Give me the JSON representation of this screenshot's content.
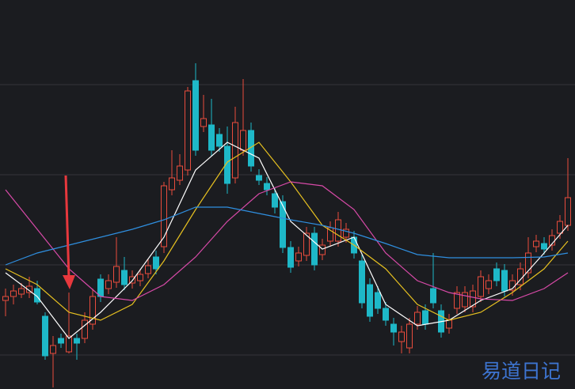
{
  "chart_data": {
    "type": "candlestick",
    "ylim": [
      0,
      492
    ],
    "yticks": [
      43,
      157,
      271,
      385
    ],
    "grid": true,
    "up_color": "#e84c3d",
    "down_color": "#1eb8c8",
    "watermark": "易道日记",
    "candles": [
      {
        "open": 112,
        "high": 127,
        "low": 92,
        "close": 117
      },
      {
        "open": 117,
        "high": 132,
        "low": 107,
        "close": 124
      },
      {
        "open": 120,
        "high": 134,
        "low": 115,
        "close": 127
      },
      {
        "open": 122,
        "high": 142,
        "low": 115,
        "close": 130
      },
      {
        "open": 127,
        "high": 137,
        "low": 107,
        "close": 110
      },
      {
        "open": 92,
        "high": 97,
        "low": 37,
        "close": 42
      },
      {
        "open": 45,
        "high": 67,
        "low": 2,
        "close": 55
      },
      {
        "open": 64,
        "high": 70,
        "low": 52,
        "close": 58
      },
      {
        "open": 47,
        "high": 122,
        "low": 45,
        "close": 67
      },
      {
        "open": 64,
        "high": 70,
        "low": 37,
        "close": 58
      },
      {
        "open": 64,
        "high": 97,
        "low": 58,
        "close": 87
      },
      {
        "open": 82,
        "high": 127,
        "low": 75,
        "close": 117
      },
      {
        "open": 139,
        "high": 145,
        "low": 110,
        "close": 117
      },
      {
        "open": 127,
        "high": 145,
        "low": 120,
        "close": 137
      },
      {
        "open": 135,
        "high": 192,
        "low": 128,
        "close": 155
      },
      {
        "open": 150,
        "high": 167,
        "low": 125,
        "close": 132
      },
      {
        "open": 134,
        "high": 150,
        "low": 127,
        "close": 142
      },
      {
        "open": 137,
        "high": 152,
        "low": 130,
        "close": 145
      },
      {
        "open": 146,
        "high": 165,
        "low": 140,
        "close": 156
      },
      {
        "open": 167,
        "high": 175,
        "low": 145,
        "close": 152
      },
      {
        "open": 180,
        "high": 262,
        "low": 172,
        "close": 257
      },
      {
        "open": 252,
        "high": 302,
        "low": 245,
        "close": 267
      },
      {
        "open": 264,
        "high": 297,
        "low": 258,
        "close": 282
      },
      {
        "open": 277,
        "high": 382,
        "low": 270,
        "close": 377
      },
      {
        "open": 390,
        "high": 412,
        "low": 295,
        "close": 302
      },
      {
        "open": 332,
        "high": 372,
        "low": 325,
        "close": 342
      },
      {
        "open": 334,
        "high": 367,
        "low": 295,
        "close": 302
      },
      {
        "open": 322,
        "high": 330,
        "low": 300,
        "close": 307
      },
      {
        "open": 307,
        "high": 332,
        "low": 247,
        "close": 260
      },
      {
        "open": 267,
        "high": 357,
        "low": 260,
        "close": 337
      },
      {
        "open": 302,
        "high": 392,
        "low": 295,
        "close": 327
      },
      {
        "open": 327,
        "high": 337,
        "low": 275,
        "close": 282
      },
      {
        "open": 270,
        "high": 278,
        "low": 258,
        "close": 264
      },
      {
        "open": 260,
        "high": 268,
        "low": 245,
        "close": 252
      },
      {
        "open": 247,
        "high": 255,
        "low": 222,
        "close": 230
      },
      {
        "open": 237,
        "high": 245,
        "low": 172,
        "close": 179
      },
      {
        "open": 179,
        "high": 187,
        "low": 147,
        "close": 154
      },
      {
        "open": 162,
        "high": 180,
        "low": 155,
        "close": 172
      },
      {
        "open": 169,
        "high": 205,
        "low": 162,
        "close": 197
      },
      {
        "open": 197,
        "high": 205,
        "low": 150,
        "close": 157
      },
      {
        "open": 170,
        "high": 190,
        "low": 163,
        "close": 182
      },
      {
        "open": 187,
        "high": 212,
        "low": 180,
        "close": 204
      },
      {
        "open": 187,
        "high": 224,
        "low": 180,
        "close": 214
      },
      {
        "open": 192,
        "high": 210,
        "low": 185,
        "close": 202
      },
      {
        "open": 192,
        "high": 200,
        "low": 165,
        "close": 172
      },
      {
        "open": 162,
        "high": 170,
        "low": 102,
        "close": 109
      },
      {
        "open": 132,
        "high": 140,
        "low": 85,
        "close": 92
      },
      {
        "open": 122,
        "high": 130,
        "low": 95,
        "close": 102
      },
      {
        "open": 102,
        "high": 110,
        "low": 80,
        "close": 87
      },
      {
        "open": 82,
        "high": 90,
        "low": 55,
        "close": 72
      },
      {
        "open": 60,
        "high": 80,
        "low": 45,
        "close": 72
      },
      {
        "open": 52,
        "high": 90,
        "low": 45,
        "close": 82
      },
      {
        "open": 82,
        "high": 105,
        "low": 75,
        "close": 97
      },
      {
        "open": 99,
        "high": 107,
        "low": 75,
        "close": 82
      },
      {
        "open": 127,
        "high": 172,
        "low": 102,
        "close": 109
      },
      {
        "open": 99,
        "high": 107,
        "low": 65,
        "close": 72
      },
      {
        "open": 77,
        "high": 95,
        "low": 70,
        "close": 87
      },
      {
        "open": 102,
        "high": 130,
        "low": 95,
        "close": 122
      },
      {
        "open": 104,
        "high": 130,
        "low": 97,
        "close": 122
      },
      {
        "open": 104,
        "high": 132,
        "low": 97,
        "close": 124
      },
      {
        "open": 117,
        "high": 150,
        "low": 110,
        "close": 142
      },
      {
        "open": 127,
        "high": 145,
        "low": 120,
        "close": 137
      },
      {
        "open": 152,
        "high": 160,
        "low": 130,
        "close": 137
      },
      {
        "open": 150,
        "high": 158,
        "low": 117,
        "close": 124
      },
      {
        "open": 125,
        "high": 145,
        "low": 118,
        "close": 137
      },
      {
        "open": 132,
        "high": 160,
        "low": 125,
        "close": 152
      },
      {
        "open": 147,
        "high": 192,
        "low": 140,
        "close": 172
      },
      {
        "open": 180,
        "high": 195,
        "low": 173,
        "close": 187
      },
      {
        "open": 184,
        "high": 192,
        "low": 170,
        "close": 177
      },
      {
        "open": 182,
        "high": 202,
        "low": 175,
        "close": 194
      },
      {
        "open": 197,
        "high": 220,
        "low": 190,
        "close": 212
      },
      {
        "open": 207,
        "high": 292,
        "low": 200,
        "close": 242
      }
    ],
    "series": [
      {
        "color": "#ffffff",
        "x": [
          0,
          4,
          8,
          12,
          16,
          20,
          24,
          28,
          32,
          36,
          40,
          44,
          48,
          52,
          56,
          60,
          64,
          68,
          71
        ],
        "values": [
          147,
          117,
          64,
          97,
          137,
          192,
          277,
          312,
          292,
          212,
          177,
          192,
          107,
          80,
          87,
          112,
          127,
          172,
          207
        ]
      },
      {
        "color": "#e6c020",
        "x": [
          0,
          4,
          8,
          12,
          16,
          20,
          24,
          28,
          32,
          36,
          40,
          44,
          48,
          52,
          56,
          60,
          64,
          68,
          71
        ],
        "values": [
          152,
          132,
          97,
          87,
          107,
          162,
          227,
          287,
          312,
          262,
          207,
          182,
          152,
          107,
          87,
          97,
          122,
          152,
          187
        ]
      },
      {
        "color": "#d84aa8",
        "x": [
          0,
          4,
          8,
          12,
          16,
          20,
          24,
          28,
          32,
          36,
          40,
          44,
          48,
          52,
          56,
          60,
          64,
          68,
          71
        ],
        "values": [
          252,
          202,
          152,
          117,
          112,
          132,
          167,
          212,
          247,
          262,
          257,
          227,
          172,
          137,
          122,
          114,
          112,
          127,
          147
        ]
      },
      {
        "color": "#2f8fe0",
        "x": [
          0,
          4,
          8,
          12,
          16,
          20,
          24,
          28,
          32,
          36,
          40,
          44,
          48,
          52,
          56,
          60,
          64,
          68,
          71
        ],
        "values": [
          157,
          172,
          182,
          192,
          202,
          214,
          230,
          230,
          222,
          214,
          207,
          197,
          184,
          170,
          166,
          166,
          166,
          167,
          172
        ]
      }
    ]
  }
}
